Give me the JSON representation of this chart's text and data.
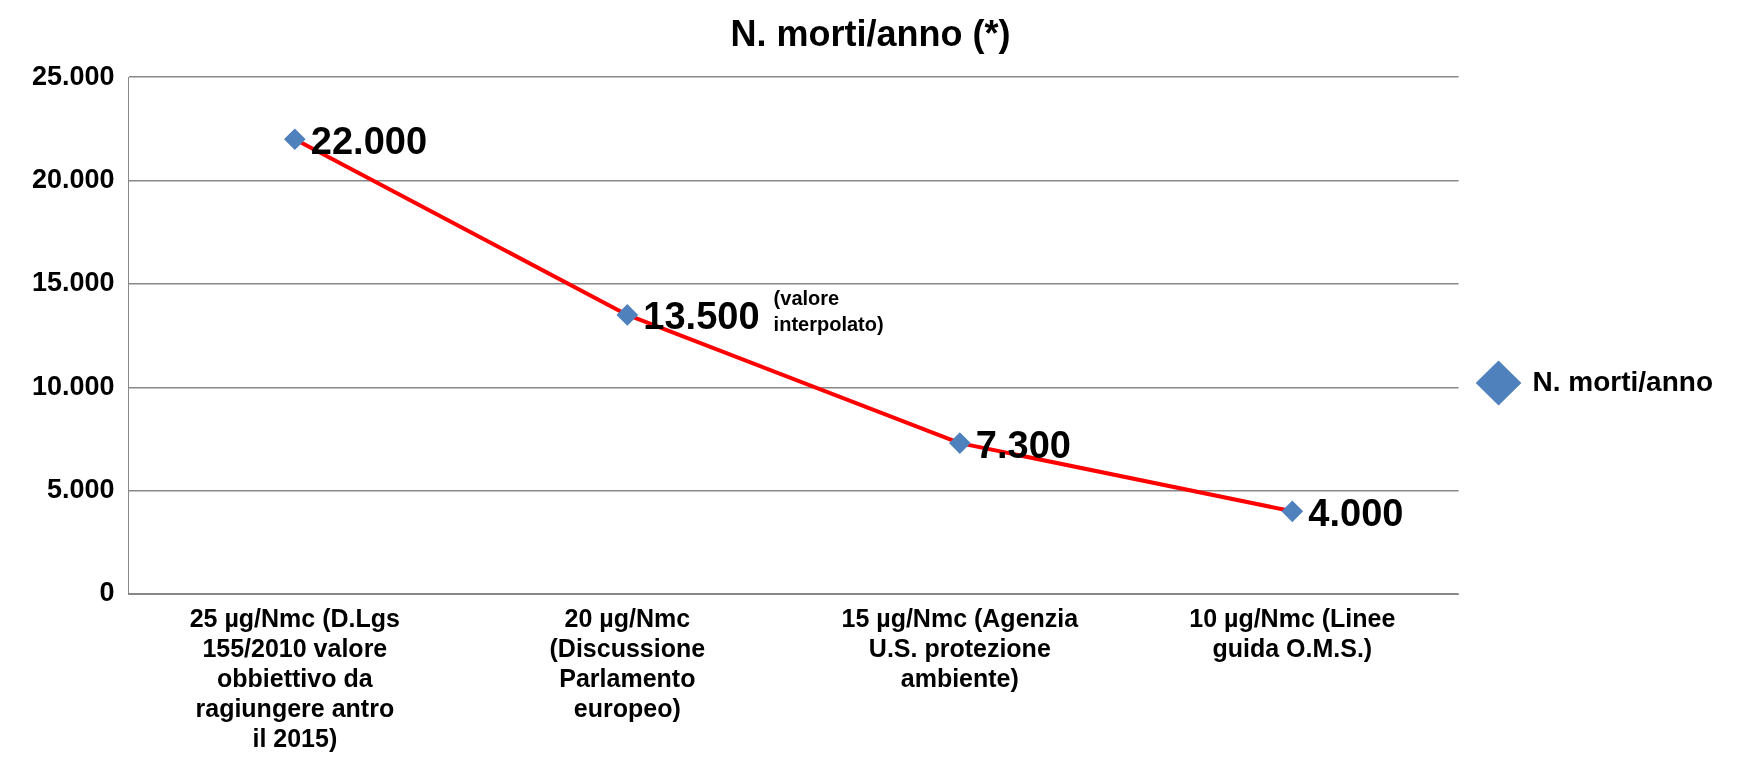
{
  "chart_data": {
    "type": "line",
    "title": "N. morti/anno (*)",
    "categories": [
      "25 µg/Nmc (D.Lgs 155/2010 valore obbiettivo da ragiungere antro il 2015)",
      "20 µg/Nmc (Discussione Parlamento europeo)",
      "15 µg/Nmc (Agenzia U.S. protezione ambiente)",
      "10 µg/Nmc (Linee guida O.M.S.)"
    ],
    "series": [
      {
        "name": "N. morti/anno",
        "color": "#ff0000",
        "colors": [
          "#4f81bd",
          "#4f81bd",
          "#4f81bd",
          "#4f81bd"
        ],
        "values": [
          22000,
          13500,
          7300,
          4000
        ],
        "value_labels": [
          "22.000",
          "13.500",
          "7.300",
          "4.000"
        ]
      }
    ],
    "ylim": [
      0,
      25000
    ],
    "yticks": [
      {
        "value": 0,
        "label": "0"
      },
      {
        "value": 5000,
        "label": "5.000"
      },
      {
        "value": 10000,
        "label": "10.000"
      },
      {
        "value": 15000,
        "label": "15.000"
      },
      {
        "value": 20000,
        "label": "20.000"
      },
      {
        "value": 25000,
        "label": "25.000"
      }
    ],
    "grid": "y",
    "legend": "right",
    "marker": "diamond",
    "line_style": "solid",
    "annotations": [
      "(valore interpolato)"
    ]
  }
}
